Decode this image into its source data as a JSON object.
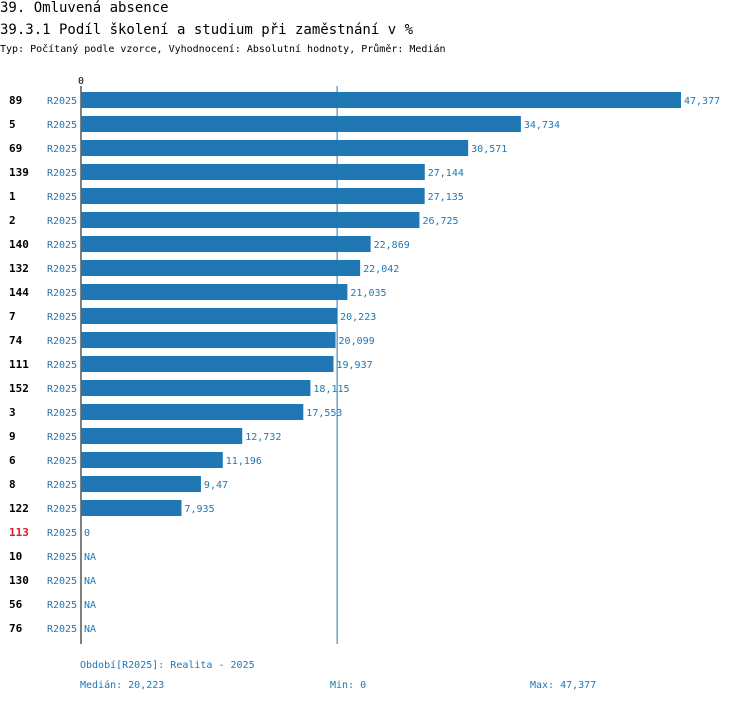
{
  "header": {
    "title": "39. Omluvená absence",
    "subtitle": "39.3.1 Podíl školení a studium při zaměstnání v %",
    "meta": "Typ: Počítaný podle vzorce, Vyhodnocení: Absolutní hodnoty, Průměr: Medián"
  },
  "chart_data": {
    "type": "bar",
    "orientation": "horizontal",
    "x_tick_label": "0",
    "period_code": "R2025",
    "xlim": [
      0,
      47.377
    ],
    "median": 20.223,
    "categories": [
      "89",
      "5",
      "69",
      "139",
      "1",
      "2",
      "140",
      "132",
      "144",
      "7",
      "74",
      "111",
      "152",
      "3",
      "9",
      "6",
      "8",
      "122",
      "113",
      "10",
      "130",
      "56",
      "76"
    ],
    "highlight_category": "113",
    "values": [
      47.377,
      34.734,
      30.571,
      27.144,
      27.135,
      26.725,
      22.869,
      22.042,
      21.035,
      20.223,
      20.099,
      19.937,
      18.115,
      17.553,
      12.732,
      11.196,
      9.47,
      7.935,
      0,
      null,
      null,
      null,
      null
    ],
    "value_labels": [
      "47,377",
      "34,734",
      "30,571",
      "27,144",
      "27,135",
      "26,725",
      "22,869",
      "22,042",
      "21,035",
      "20,223",
      "20,099",
      "19,937",
      "18,115",
      "17,553",
      "12,732",
      "11,196",
      "9,47",
      "7,935",
      "0",
      "NA",
      "NA",
      "NA",
      "NA"
    ]
  },
  "footer": {
    "period": "Období[R2025]: Realita - 2025",
    "median": "Medián: 20,223",
    "min": "Min: 0",
    "max": "Max: 47,377"
  },
  "colors": {
    "bar": "#1f77b4",
    "text_blue": "#1f77b4",
    "highlight": "#e31a1c",
    "axis": "#000000"
  }
}
